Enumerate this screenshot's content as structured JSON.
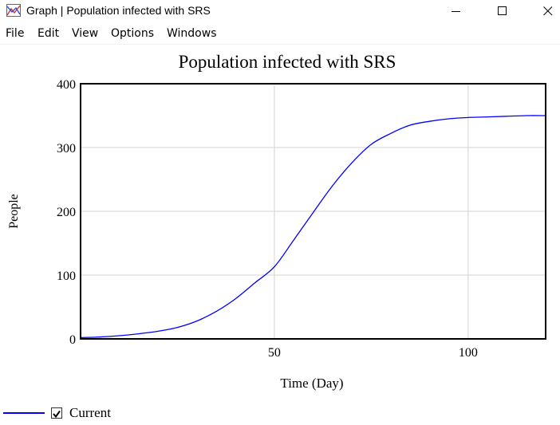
{
  "window": {
    "title": "Graph | Population infected with SRS",
    "icon": "graph-icon"
  },
  "menu": [
    "File",
    "Edit",
    "View",
    "Options",
    "Windows"
  ],
  "legend": {
    "checked": true,
    "label": "Current",
    "color": "#0000ff"
  },
  "chart_data": {
    "type": "line",
    "title": "Population infected with SRS",
    "xlabel": "Time (Day)",
    "ylabel": "People",
    "xlim": [
      0,
      120
    ],
    "ylim": [
      0,
      400
    ],
    "x_ticks": [
      50,
      100
    ],
    "y_ticks": [
      0,
      100,
      200,
      300,
      400
    ],
    "grid": true,
    "series": [
      {
        "name": "Current",
        "color": "#0000ff",
        "x": [
          0,
          5,
          10,
          15,
          20,
          25,
          30,
          35,
          40,
          45,
          50,
          55,
          60,
          65,
          70,
          75,
          80,
          85,
          90,
          95,
          100,
          105,
          110,
          115,
          120
        ],
        "y": [
          2,
          3,
          5,
          8,
          12,
          18,
          28,
          43,
          63,
          88,
          113,
          155,
          198,
          240,
          276,
          305,
          322,
          335,
          341,
          345,
          347,
          348,
          349,
          350,
          350
        ]
      }
    ]
  }
}
